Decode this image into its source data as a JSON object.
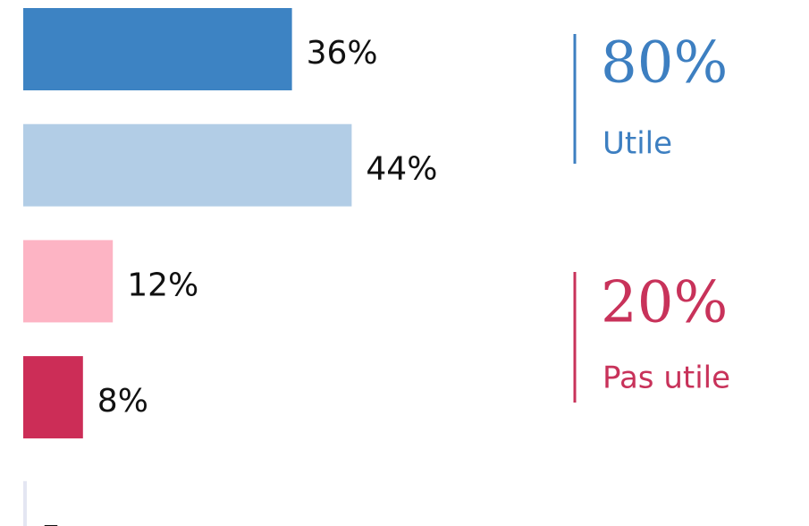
{
  "chart_data": {
    "type": "bar",
    "orientation": "horizontal",
    "categories": [
      null,
      null,
      null,
      null,
      null
    ],
    "values": [
      36,
      44,
      12,
      8,
      null
    ],
    "value_labels": [
      "36%",
      "44%",
      "12%",
      "8%",
      "–"
    ],
    "colors": [
      "#3d83c3",
      "#b2cde6",
      "#fdb4c4",
      "#cc2d57",
      "#e4e6f2"
    ],
    "summary": [
      {
        "label": "80%",
        "text": "Utile",
        "color": "#3d7fc1"
      },
      {
        "label": "20%",
        "text": "Pas utile",
        "color": "#c8325a"
      }
    ]
  }
}
